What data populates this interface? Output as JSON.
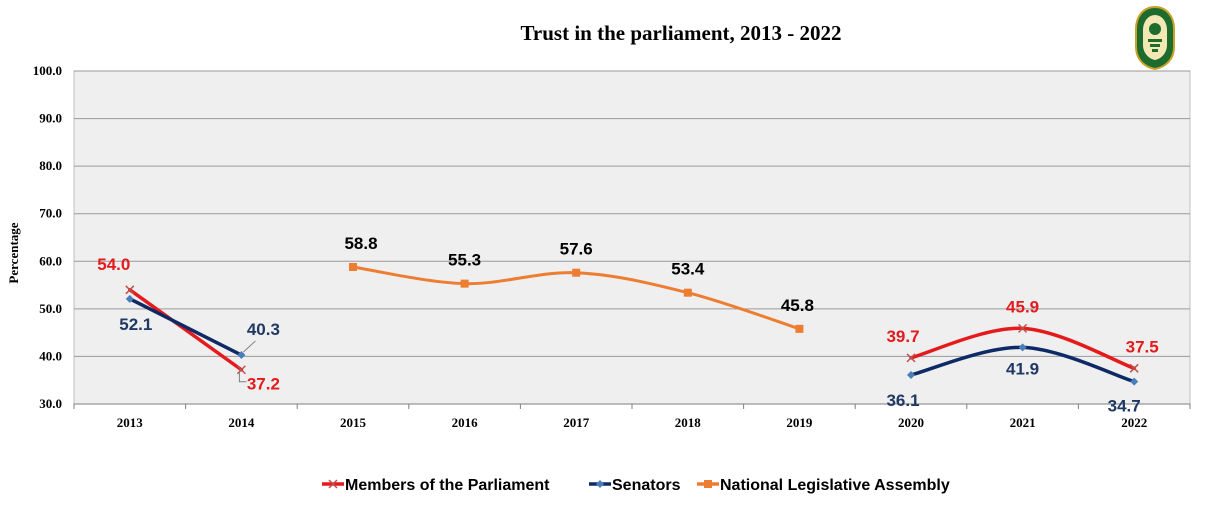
{
  "chart_data": {
    "type": "line",
    "title": "Trust in the parliament, 2013 - 2022",
    "xlabel": "",
    "ylabel": "Percentage",
    "categories": [
      "2013",
      "2014",
      "2015",
      "2016",
      "2017",
      "2018",
      "2019",
      "2020",
      "2021",
      "2022"
    ],
    "ylim": [
      30,
      100
    ],
    "yticks": [
      "30.0",
      "40.0",
      "50.0",
      "60.0",
      "70.0",
      "80.0",
      "90.0",
      "100.0"
    ],
    "grid": true,
    "legend_position": "bottom",
    "series": [
      {
        "name": "Members of the Parliament",
        "color": "#e41a1c",
        "label_color": "#e41a1c",
        "marker": "x",
        "segments": [
          {
            "x": [
              "2013",
              "2014"
            ],
            "values": [
              54.0,
              37.2
            ],
            "labels": [
              "54.0",
              "37.2"
            ],
            "curve": false
          },
          {
            "x": [
              "2020",
              "2021",
              "2022"
            ],
            "values": [
              39.7,
              45.9,
              37.5
            ],
            "labels": [
              "39.7",
              "45.9",
              "37.5"
            ],
            "curve": true
          }
        ]
      },
      {
        "name": "Senators",
        "color": "#0d2a66",
        "label_color": "#1f3864",
        "marker": "diamond",
        "segments": [
          {
            "x": [
              "2013",
              "2014"
            ],
            "values": [
              52.1,
              40.3
            ],
            "labels": [
              "52.1",
              "40.3"
            ],
            "curve": false
          },
          {
            "x": [
              "2020",
              "2021",
              "2022"
            ],
            "values": [
              36.1,
              41.9,
              34.7
            ],
            "labels": [
              "36.1",
              "41.9",
              "34.7"
            ],
            "curve": true
          }
        ]
      },
      {
        "name": "National Legislative Assembly",
        "color": "#ed7d31",
        "label_color": "#000000",
        "marker": "square",
        "segments": [
          {
            "x": [
              "2015",
              "2016",
              "2017",
              "2018",
              "2019"
            ],
            "values": [
              58.8,
              55.3,
              57.6,
              53.4,
              45.8
            ],
            "labels": [
              "58.8",
              "55.3",
              "57.6",
              "53.4",
              "45.8"
            ],
            "curve": true
          }
        ]
      }
    ]
  },
  "logo": {
    "name": "institution-seal-logo",
    "color": "#1e6b2e"
  }
}
